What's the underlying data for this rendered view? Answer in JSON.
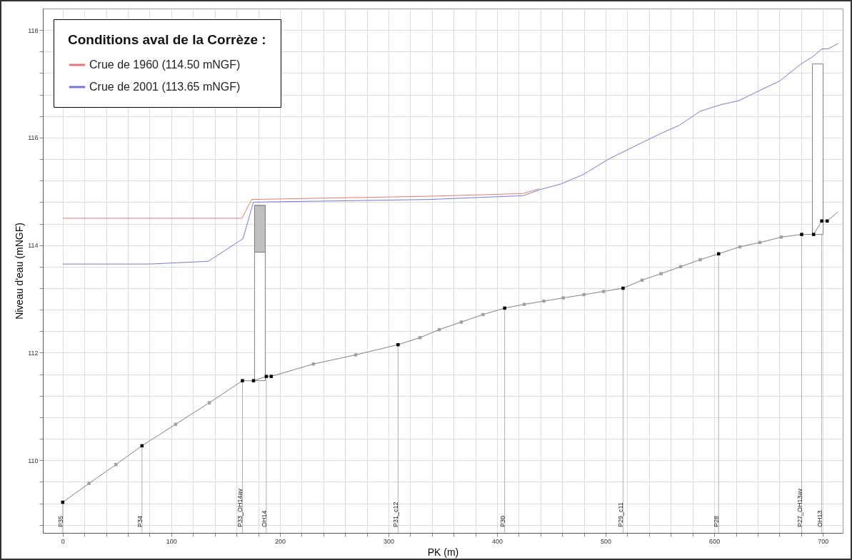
{
  "chart_data": {
    "type": "line",
    "xlabel": "PK (m)",
    "ylabel": "Niveau d'eau (mNGF)",
    "legend_title": "Conditions aval de la Corrèze :",
    "legend": "top left",
    "grid": true,
    "xlim": [
      -15,
      715
    ],
    "ylim": [
      108.65,
      118.4
    ],
    "xticks": [
      0,
      {
        "value": 20,
        "label": null
      },
      {
        "value": 40,
        "label": null
      },
      {
        "value": 60,
        "label": null
      },
      {
        "value": 80,
        "label": null
      },
      100,
      {
        "value": 120,
        "label": null
      },
      {
        "value": 140,
        "label": null
      },
      {
        "value": 160,
        "label": null
      },
      {
        "value": 180,
        "label": null
      },
      200,
      {
        "value": 220,
        "label": null
      },
      {
        "value": 240,
        "label": null
      },
      {
        "value": 260,
        "label": null
      },
      {
        "value": 280,
        "label": null
      },
      300,
      {
        "value": 320,
        "label": null
      },
      {
        "value": 340,
        "label": null
      },
      {
        "value": 360,
        "label": null
      },
      {
        "value": 380,
        "label": null
      },
      400,
      {
        "value": 420,
        "label": null
      },
      {
        "value": 440,
        "label": null
      },
      {
        "value": 460,
        "label": null
      },
      {
        "value": 480,
        "label": null
      },
      500,
      {
        "value": 520,
        "label": null
      },
      {
        "value": 540,
        "label": null
      },
      {
        "value": 560,
        "label": null
      },
      {
        "value": 580,
        "label": null
      },
      600,
      {
        "value": 620,
        "label": null
      },
      {
        "value": 640,
        "label": null
      },
      {
        "value": 660,
        "label": null
      },
      {
        "value": 680,
        "label": null
      },
      700
    ],
    "yticks": [
      {
        "value": 108.8,
        "label": null
      },
      {
        "value": 109.2,
        "label": null
      },
      {
        "value": 109.6,
        "label": null
      },
      110,
      {
        "value": 110.4,
        "label": null
      },
      {
        "value": 110.8,
        "label": null
      },
      {
        "value": 111.2,
        "label": null
      },
      {
        "value": 111.6,
        "label": null
      },
      112,
      {
        "value": 112.4,
        "label": null
      },
      {
        "value": 112.8,
        "label": null
      },
      {
        "value": 113.2,
        "label": null
      },
      {
        "value": 113.6,
        "label": null
      },
      114,
      {
        "value": 114.4,
        "label": null
      },
      {
        "value": 114.8,
        "label": null
      },
      {
        "value": 115.2,
        "label": null
      },
      {
        "value": 115.6,
        "label": null
      },
      116,
      {
        "value": 116.4,
        "label": null
      },
      {
        "value": 116.8,
        "label": null
      },
      {
        "value": 117.2,
        "label": null
      },
      {
        "value": 117.6,
        "label": null
      },
      118
    ],
    "series": [
      {
        "type": "bar",
        "x": [
          181.6,
          695.3
        ],
        "base": [
          111.48,
          114.2
        ],
        "values": [
          3.26,
          3.17
        ],
        "color": "#ffffff"
      },
      {
        "type": "bar",
        "x": [
          181.6
        ],
        "base": [
          113.87
        ],
        "values": [
          0.87
        ],
        "color": "#bfbfbf"
      },
      {
        "name": "Crue de 1960 (114.50 mNGF)",
        "color": "#e87878",
        "x": [
          0,
          165,
          174,
          338,
          424,
          439
        ],
        "values": [
          114.5,
          114.5,
          114.85,
          114.91,
          114.96,
          115.05
        ]
      },
      {
        "name": "Crue de 2001 (113.65 mNGF)",
        "color": "#7878d8",
        "x": [
          0,
          80.6,
          134,
          166,
          175.6,
          338,
          424,
          439,
          459,
          479,
          503.5,
          551,
          568,
          587,
          605.6,
          623,
          638,
          660,
          680,
          691,
          699,
          705,
          714
        ],
        "values": [
          113.65,
          113.65,
          113.7,
          114.12,
          114.8,
          114.85,
          114.92,
          115.03,
          115.14,
          115.31,
          115.61,
          116.08,
          116.23,
          116.49,
          116.61,
          116.69,
          116.84,
          117.05,
          117.37,
          117.51,
          117.65,
          117.65,
          117.75
        ]
      },
      {
        "color": "#808080",
        "marker": "square",
        "x": [
          0,
          24.2,
          49,
          73,
          104,
          135,
          165.5,
          175.7,
          187.5,
          192,
          230.8,
          269.8,
          308.8,
          329,
          346.7,
          367,
          387,
          407,
          425,
          443,
          461,
          480,
          498,
          516,
          533.5,
          551,
          569,
          587,
          604,
          623.6,
          642,
          661.7,
          680.5,
          691.5,
          699,
          704,
          714
        ],
        "values": [
          109.22,
          109.57,
          109.92,
          110.27,
          110.67,
          111.07,
          111.48,
          111.48,
          111.56,
          111.56,
          111.79,
          111.96,
          112.15,
          112.28,
          112.43,
          112.57,
          112.71,
          112.83,
          112.9,
          112.96,
          113.02,
          113.08,
          113.14,
          113.2,
          113.35,
          113.47,
          113.6,
          113.73,
          113.84,
          113.97,
          114.05,
          114.15,
          114.2,
          114.2,
          114.45,
          114.45,
          114.62
        ],
        "colors": [
          "#000000",
          "#a0a0a0",
          "#a0a0a0",
          "#000000",
          "#a0a0a0",
          "#a0a0a0",
          "#000000",
          "#000000",
          "#000000",
          "#000000",
          "#a0a0a0",
          "#a0a0a0",
          "#000000",
          "#a0a0a0",
          "#a0a0a0",
          "#a0a0a0",
          "#a0a0a0",
          "#000000",
          "#a0a0a0",
          "#a0a0a0",
          "#a0a0a0",
          "#a0a0a0",
          "#a0a0a0",
          "#000000",
          "#a0a0a0",
          "#a0a0a0",
          "#a0a0a0",
          "#a0a0a0",
          "#000000",
          "#a0a0a0",
          "#a0a0a0",
          "#a0a0a0",
          "#000000",
          "#000000",
          "#000000",
          "#000000",
          null
        ]
      }
    ],
    "annotations": [
      {
        "text": "P35",
        "x": 0,
        "y": 109.22
      },
      {
        "text": "P34",
        "x": 73,
        "y": 110.27
      },
      {
        "text": "P33_OH14av",
        "x": 165.5,
        "y": 111.48
      },
      {
        "text": "OH14",
        "x": 187.5,
        "y": 111.56
      },
      {
        "text": "P31_c12",
        "x": 308.8,
        "y": 112.15
      },
      {
        "text": "P30",
        "x": 407,
        "y": 112.83
      },
      {
        "text": "P29_c11",
        "x": 516,
        "y": 113.2
      },
      {
        "text": "P28",
        "x": 604,
        "y": 113.84
      },
      {
        "text": "P27_OH13av",
        "x": 680.5,
        "y": 114.2
      },
      {
        "text": "OH13",
        "x": 699,
        "y": 114.45
      }
    ]
  }
}
